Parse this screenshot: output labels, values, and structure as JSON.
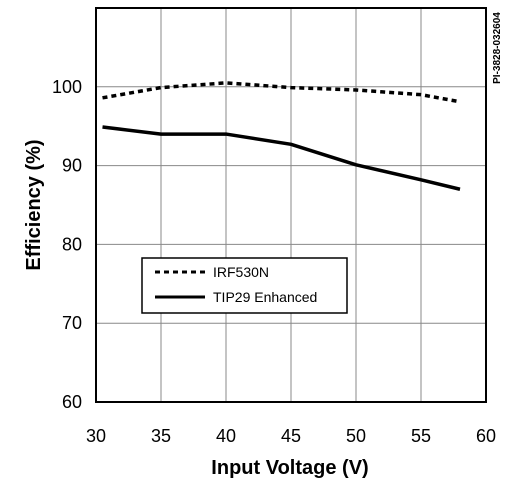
{
  "chart_data": {
    "type": "line",
    "xlabel": "Input Voltage (V)",
    "ylabel": "Efficiency (%)",
    "xlim": [
      30,
      60
    ],
    "ylim": [
      60,
      110
    ],
    "xticks": [
      30,
      35,
      40,
      45,
      50,
      55,
      60
    ],
    "yticks": [
      60,
      70,
      80,
      90,
      100
    ],
    "grid": true,
    "legend_position": "lower-left",
    "series": [
      {
        "name": "IRF530N",
        "style": "dotted",
        "color": "#000000",
        "x": [
          30.5,
          35,
          40,
          45,
          50,
          55,
          58
        ],
        "y": [
          98.6,
          99.9,
          100.5,
          99.9,
          99.6,
          99.0,
          98.1
        ]
      },
      {
        "name": "TIP29 Enhanced",
        "style": "solid",
        "color": "#000000",
        "x": [
          30.5,
          35,
          40,
          45,
          50,
          55,
          58
        ],
        "y": [
          94.9,
          94.0,
          94.0,
          92.7,
          90.1,
          88.2,
          87.0
        ]
      }
    ],
    "annotation": "PI-3828-032604"
  }
}
